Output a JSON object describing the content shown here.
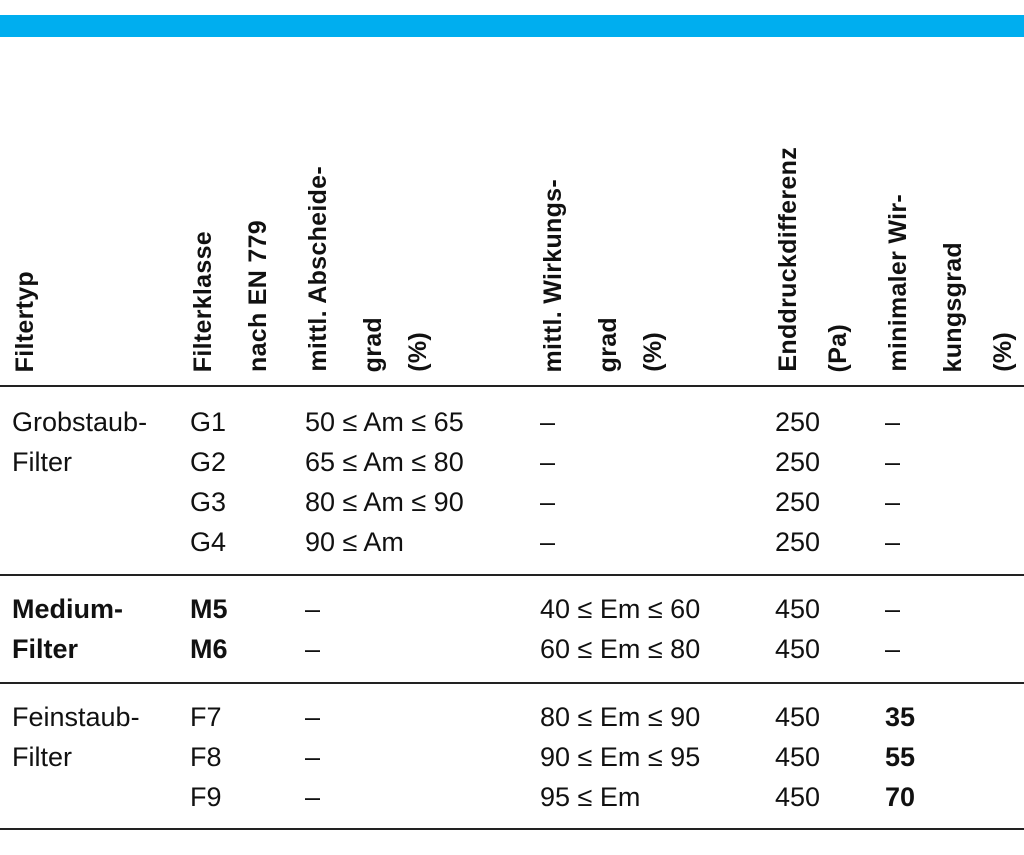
{
  "accent_color": "#00AEEF",
  "header": {
    "filtertyp": [
      "Filtertyp"
    ],
    "filterklasse": [
      "Filterklasse",
      "nach EN 779"
    ],
    "abscheidegrad": [
      "mittl. Abscheide-",
      "grad",
      "(%)"
    ],
    "wirkungsgrad": [
      "mittl. Wirkungs-",
      "grad",
      "(%)"
    ],
    "enddruck": [
      "Enddruckdifferenz",
      "(Pa)"
    ],
    "min_wirkungsgrad": [
      "minimaler Wir-",
      "kungsgrad",
      "(%)"
    ]
  },
  "groups": [
    {
      "type_lines": [
        "Grobstaub-",
        "Filter"
      ],
      "bold": false,
      "rows": [
        {
          "klasse": "G1",
          "abscheidegrad": "50 ≤ Am ≤ 65",
          "wirkungsgrad": "–",
          "enddruck": "250",
          "min": "–"
        },
        {
          "klasse": "G2",
          "abscheidegrad": "65 ≤ Am ≤ 80",
          "wirkungsgrad": "–",
          "enddruck": "250",
          "min": "–"
        },
        {
          "klasse": "G3",
          "abscheidegrad": "80 ≤ Am ≤ 90",
          "wirkungsgrad": "–",
          "enddruck": "250",
          "min": "–"
        },
        {
          "klasse": "G4",
          "abscheidegrad": "90 ≤ Am",
          "wirkungsgrad": "–",
          "enddruck": "250",
          "min": "–"
        }
      ]
    },
    {
      "type_lines": [
        "Medium-",
        "Filter"
      ],
      "bold": true,
      "rows": [
        {
          "klasse": "M5",
          "abscheidegrad": "–",
          "wirkungsgrad": "40 ≤ Em ≤ 60",
          "enddruck": "450",
          "min": "–"
        },
        {
          "klasse": "M6",
          "abscheidegrad": "–",
          "wirkungsgrad": "60 ≤ Em ≤ 80",
          "enddruck": "450",
          "min": "–"
        }
      ]
    },
    {
      "type_lines": [
        "Feinstaub-",
        "Filter"
      ],
      "bold": false,
      "rows": [
        {
          "klasse": "F7",
          "abscheidegrad": "–",
          "wirkungsgrad": "80 ≤ Em ≤ 90",
          "enddruck": "450",
          "min": "35"
        },
        {
          "klasse": "F8",
          "abscheidegrad": "–",
          "wirkungsgrad": "90 ≤ Em ≤ 95",
          "enddruck": "450",
          "min": "55"
        },
        {
          "klasse": "F9",
          "abscheidegrad": "–",
          "wirkungsgrad": "95 ≤ Em",
          "enddruck": "450",
          "min": "70"
        }
      ]
    }
  ]
}
